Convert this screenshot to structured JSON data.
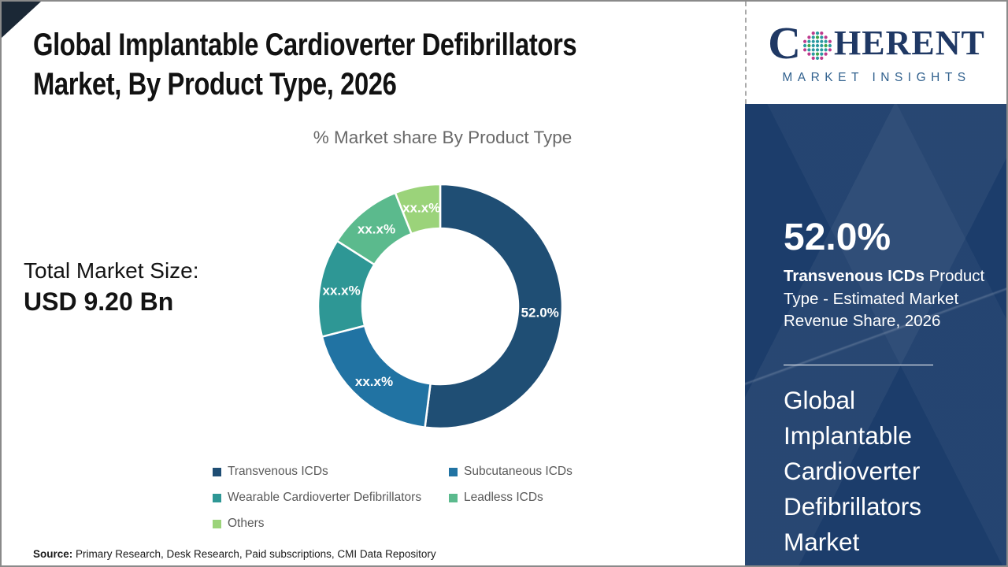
{
  "title": {
    "line1": "Global Implantable Cardioverter Defibrillators",
    "line2": "Market, By Product Type, 2026"
  },
  "chart": {
    "subtitle": "% Market share By Product Type"
  },
  "total_market": {
    "label": "Total Market Size:",
    "value": "USD 9.20 Bn"
  },
  "chart_data": {
    "type": "pie",
    "donut": true,
    "title": "% Market share By Product Type",
    "start_angle_deg": 0,
    "direction": "clockwise",
    "legend_position": "bottom",
    "series": [
      {
        "name": "Transvenous ICDs",
        "label": "52.0%",
        "value": 52.0,
        "color": "#1F4E74"
      },
      {
        "name": "Subcutaneous ICDs",
        "label": "xx.x%",
        "value": 19.0,
        "color": "#2173A3",
        "estimated": true
      },
      {
        "name": "Wearable Cardioverter Defibrillators",
        "label": "xx.x%",
        "value": 13.0,
        "color": "#2E9795",
        "estimated": true
      },
      {
        "name": "Leadless ICDs",
        "label": "xx.x%",
        "value": 10.0,
        "color": "#5BBA8D",
        "estimated": true
      },
      {
        "name": "Others",
        "label": "xx.x%",
        "value": 6.0,
        "color": "#9BD37A",
        "estimated": true
      }
    ]
  },
  "sidebar": {
    "logo": {
      "c": "C",
      "rest": "HERENT",
      "tagline": "MARKET INSIGHTS"
    },
    "stat": {
      "value": "52.0%",
      "desc_bold": "Transvenous ICDs",
      "desc_rest": " Product Type - Estimated Market Revenue Share, 2026"
    },
    "market_name": "Global Implantable Cardioverter Defibrillators Market"
  },
  "source": {
    "label": "Source:",
    "text": " Primary Research, Desk Research, Paid subscriptions, CMI Data Repository"
  },
  "colors": {
    "panel_navy": "#1C3D6B",
    "logo_navy": "#1F3864",
    "logo_blue": "#31618E",
    "legend_text": "#595959",
    "logo_globe_dots": [
      "#2B9AA0",
      "#BE3A8D",
      "#3FA649"
    ]
  }
}
